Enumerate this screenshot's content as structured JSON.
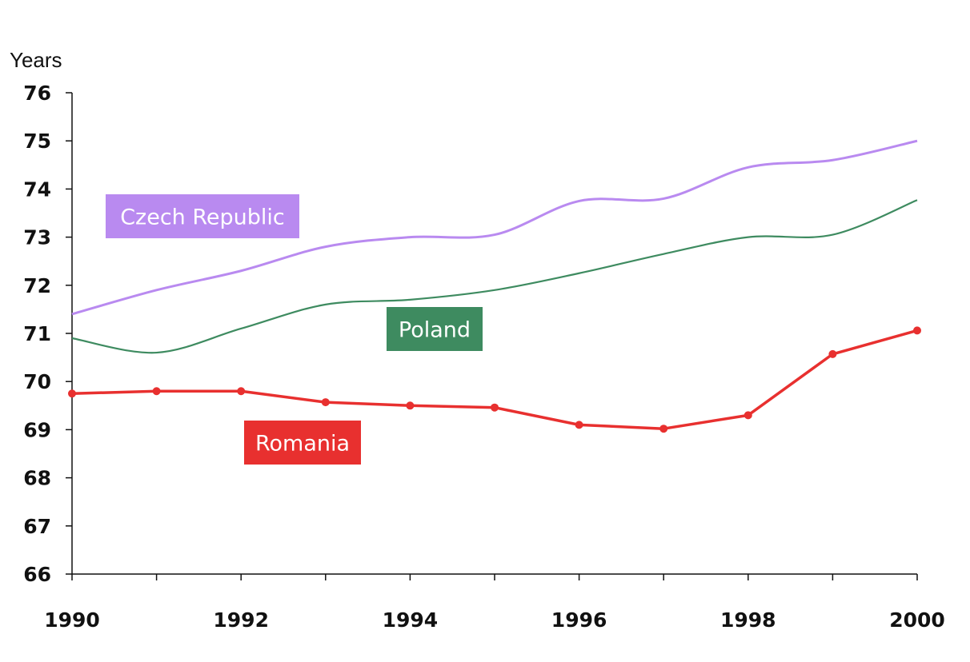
{
  "chart_data": {
    "type": "line",
    "ylabel": "Years",
    "xlabel": "",
    "title": "",
    "ylim": [
      66,
      76
    ],
    "xlim": [
      1990,
      2000
    ],
    "y_ticks": [
      "66",
      "67",
      "68",
      "69",
      "70",
      "71",
      "72",
      "73",
      "74",
      "75",
      "76"
    ],
    "x_ticks": [
      "1990",
      "1992",
      "1994",
      "1996",
      "1998",
      "2000"
    ],
    "grid": false,
    "series": [
      {
        "name": "Czech Republic",
        "color": "#b98af0",
        "marker": false,
        "x": [
          1990,
          1991,
          1992,
          1993,
          1994,
          1995,
          1996,
          1997,
          1998,
          1999,
          2000
        ],
        "values": [
          71.4,
          71.9,
          72.3,
          72.8,
          73.0,
          73.05,
          73.75,
          73.8,
          74.45,
          74.6,
          75.0
        ]
      },
      {
        "name": "Poland",
        "color": "#3e8b60",
        "marker": false,
        "x": [
          1990,
          1991,
          1992,
          1993,
          1994,
          1995,
          1996,
          1997,
          1998,
          1999,
          2000
        ],
        "values": [
          70.9,
          70.6,
          71.1,
          71.6,
          71.7,
          71.9,
          72.25,
          72.65,
          73.0,
          73.05,
          73.77
        ]
      },
      {
        "name": "Romania",
        "color": "#e8302f",
        "marker": true,
        "x": [
          1990,
          1991,
          1992,
          1993,
          1994,
          1995,
          1996,
          1997,
          1998,
          1999,
          2000
        ],
        "values": [
          69.75,
          69.8,
          69.8,
          69.57,
          69.5,
          69.46,
          69.1,
          69.02,
          69.3,
          70.57,
          71.06
        ]
      }
    ],
    "legend": [
      {
        "series": "Czech Republic",
        "label": "Czech Republic",
        "bg": "#b98af0"
      },
      {
        "series": "Poland",
        "label": "Poland",
        "bg": "#3e8b60"
      },
      {
        "series": "Romania",
        "label": "Romania",
        "bg": "#e8302f"
      }
    ]
  }
}
